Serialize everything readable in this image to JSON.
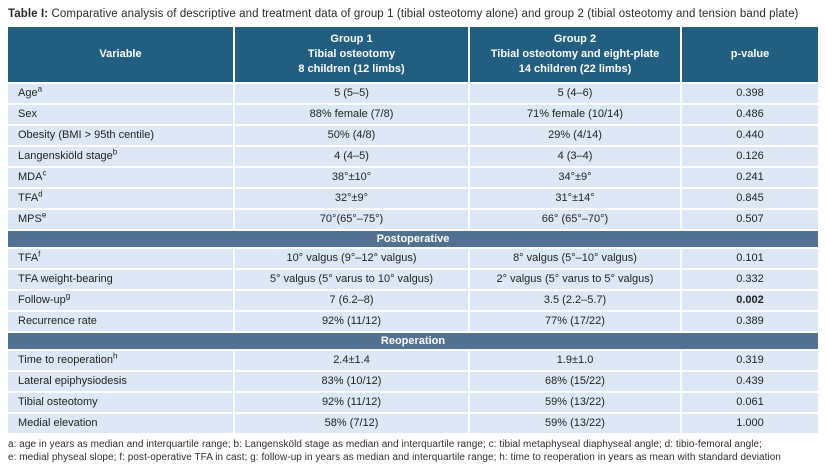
{
  "colors": {
    "header_bg": "#215e80",
    "section_bg": "#50718f",
    "row_bg": "#dce8f5",
    "header_text": "#ffffff"
  },
  "title": {
    "prefix": "Table I:",
    "text": " Comparative analysis of descriptive and treatment data of group 1 (tibial osteotomy alone) and group 2 (tibial osteotomy and tension band plate)"
  },
  "table": {
    "columns": [
      {
        "lines": [
          "Variable"
        ]
      },
      {
        "lines": [
          "Group 1",
          "Tibial osteotomy",
          "8 children (12 limbs)"
        ]
      },
      {
        "lines": [
          "Group 2",
          "Tibial osteotomy and eight-plate",
          "14 children (22 limbs)"
        ]
      },
      {
        "lines": [
          "p-value"
        ]
      }
    ],
    "sections": [
      {
        "header": "",
        "rows": [
          {
            "variable": "Age",
            "sup": "a",
            "group1": "5 (5–5)",
            "group2": "5 (4–6)",
            "p": "0.398",
            "p_bold": false
          },
          {
            "variable": "Sex",
            "sup": "",
            "group1": "88% female (7/8)",
            "group2": "71% female (10/14)",
            "p": "0.486",
            "p_bold": false
          },
          {
            "variable": "Obesity (BMI > 95th centile)",
            "sup": "",
            "group1": "50% (4/8)",
            "group2": "29% (4/14)",
            "p": "0.440",
            "p_bold": false
          },
          {
            "variable": "Langenskiöld stage",
            "sup": "b",
            "group1": "4 (4–5)",
            "group2": "4 (3–4)",
            "p": "0.126",
            "p_bold": false
          },
          {
            "variable": "MDA",
            "sup": "c",
            "group1": "38°±10°",
            "group2": "34°±9°",
            "p": "0.241",
            "p_bold": false
          },
          {
            "variable": "TFA",
            "sup": "d",
            "group1": "32°±9°",
            "group2": "31°±14°",
            "p": "0.845",
            "p_bold": false
          },
          {
            "variable": "MPS",
            "sup": "e",
            "group1": "70°(65°–75°)",
            "group2": "66° (65°–70°)",
            "p": "0.507",
            "p_bold": false
          }
        ]
      },
      {
        "header": "Postoperative",
        "rows": [
          {
            "variable": "TFA",
            "sup": "f",
            "group1": "10° valgus (9°–12° valgus)",
            "group2": "8° valgus (5°–10° valgus)",
            "p": "0.101",
            "p_bold": false
          },
          {
            "variable": "TFA weight-bearing",
            "sup": "",
            "group1": "5° valgus (5° varus to 10° valgus)",
            "group2": "2° valgus (5° varus to 5° valgus)",
            "p": "0.332",
            "p_bold": false
          },
          {
            "variable": "Follow-up",
            "sup": "g",
            "group1": "7 (6.2–8)",
            "group2": "3.5 (2.2–5.7)",
            "p": "0.002",
            "p_bold": true
          },
          {
            "variable": "Recurrence rate",
            "sup": "",
            "group1": "92% (11/12)",
            "group2": "77% (17/22)",
            "p": "0.389",
            "p_bold": false
          }
        ]
      },
      {
        "header": "Reoperation",
        "rows": [
          {
            "variable": "Time to reoperation",
            "sup": "h",
            "group1": "2.4±1.4",
            "group2": "1.9±1.0",
            "p": "0.319",
            "p_bold": false
          },
          {
            "variable": "Lateral epiphysiodesis",
            "sup": "",
            "group1": "83% (10/12)",
            "group2": "68% (15/22)",
            "p": "0.439",
            "p_bold": false
          },
          {
            "variable": "Tibial osteotomy",
            "sup": "",
            "group1": "92% (11/12)",
            "group2": "59% (13/22)",
            "p": "0.061",
            "p_bold": false
          },
          {
            "variable": "Medial elevation",
            "sup": "",
            "group1": "58% (7/12)",
            "group2": "59% (13/22)",
            "p": "1.000",
            "p_bold": false
          }
        ]
      }
    ]
  },
  "footnotes": [
    "a: age in years as median and interquartile range; b: Langensköld stage as median and interquartile range; c: tibial metaphyseal diaphyseal angle; d: tibio-femoral angle;",
    "e: medial physeal slope; f: post-operative TFA in cast; g: follow-up in years as median and interquartile range; h: time to reoperation in years as mean with standard deviation"
  ]
}
